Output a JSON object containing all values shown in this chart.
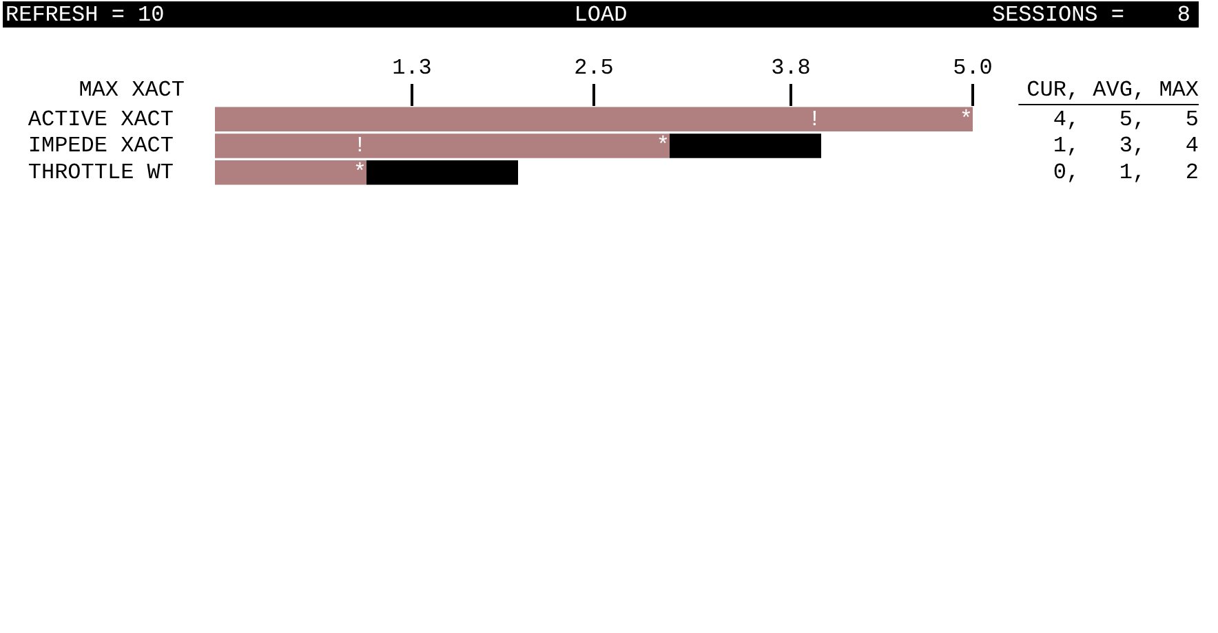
{
  "chart_data": {
    "type": "bar",
    "orientation": "horizontal",
    "stacked": true,
    "title": "LOAD",
    "ylabel": "MAX XACT",
    "categories": [
      "ACTIVE XACT",
      "IMPEDE XACT",
      "THROTTLE WT"
    ],
    "series": [
      {
        "color": "#b08080",
        "values": [
          5,
          3,
          1
        ]
      },
      {
        "color": "#000000",
        "values": [
          0,
          1,
          1
        ]
      }
    ],
    "xlim": [
      0,
      5
    ],
    "xticks": [
      {
        "value": 1.3,
        "label": "1.3"
      },
      {
        "value": 2.5,
        "label": "2.5"
      },
      {
        "value": 3.8,
        "label": "3.8"
      },
      {
        "value": 5,
        "label": "5.0"
      }
    ],
    "grid": false,
    "legend": false,
    "annotations": [
      "REFRESH = 10",
      "SESSIONS =    8",
      "CUR, AVG, MAX",
      "4,   5,   5",
      "1,   3,   4",
      "0,   1,   2",
      {
        "text": "!",
        "x": 4,
        "y": "ACTIVE XACT"
      },
      {
        "text": "*",
        "x": 5,
        "y": "ACTIVE XACT"
      },
      {
        "text": "!",
        "x": 1,
        "y": "IMPEDE XACT"
      },
      {
        "text": "*",
        "x": 3,
        "y": "IMPEDE XACT"
      },
      {
        "text": "*",
        "x": 1,
        "y": "THROTTLE WT"
      }
    ]
  }
}
